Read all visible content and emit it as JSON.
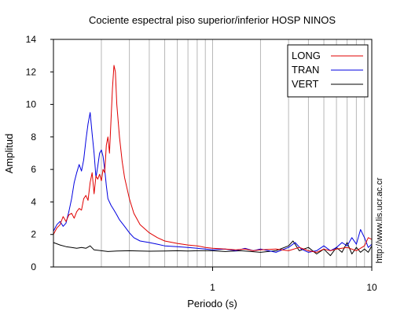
{
  "chart_data": {
    "type": "line",
    "title": "Cociente espectral piso superior/inferior  HOSP NINOS",
    "xlabel": "Periodo (s)",
    "ylabel": "Amplitud",
    "x_scale": "log",
    "xlim": [
      0.1,
      10
    ],
    "ylim": [
      0,
      14
    ],
    "x_ticks": [
      1,
      10
    ],
    "y_ticks": [
      0,
      2,
      4,
      6,
      8,
      10,
      12,
      14
    ],
    "grid": "vertical log minor gridlines",
    "legend_position": "top-right",
    "side_note": "http://www.lis.ucr.ac.cr",
    "series": [
      {
        "name": "LONG",
        "color": "#e00000",
        "points": [
          [
            0.1,
            2.0
          ],
          [
            0.105,
            2.4
          ],
          [
            0.11,
            2.6
          ],
          [
            0.115,
            3.1
          ],
          [
            0.12,
            2.8
          ],
          [
            0.125,
            3.2
          ],
          [
            0.13,
            3.3
          ],
          [
            0.135,
            3.0
          ],
          [
            0.14,
            3.4
          ],
          [
            0.145,
            3.6
          ],
          [
            0.15,
            3.5
          ],
          [
            0.155,
            4.2
          ],
          [
            0.16,
            4.4
          ],
          [
            0.165,
            4.1
          ],
          [
            0.17,
            5.2
          ],
          [
            0.175,
            5.8
          ],
          [
            0.18,
            4.5
          ],
          [
            0.185,
            5.6
          ],
          [
            0.19,
            5.4
          ],
          [
            0.195,
            5.7
          ],
          [
            0.2,
            5.3
          ],
          [
            0.205,
            6.0
          ],
          [
            0.21,
            5.8
          ],
          [
            0.215,
            7.5
          ],
          [
            0.22,
            8.0
          ],
          [
            0.225,
            7.0
          ],
          [
            0.23,
            9.0
          ],
          [
            0.235,
            11.0
          ],
          [
            0.24,
            12.4
          ],
          [
            0.245,
            12.0
          ],
          [
            0.25,
            10.0
          ],
          [
            0.26,
            8.0
          ],
          [
            0.27,
            6.5
          ],
          [
            0.28,
            5.5
          ],
          [
            0.3,
            4.2
          ],
          [
            0.32,
            3.3
          ],
          [
            0.35,
            2.6
          ],
          [
            0.4,
            2.1
          ],
          [
            0.45,
            1.8
          ],
          [
            0.5,
            1.6
          ],
          [
            0.6,
            1.45
          ],
          [
            0.7,
            1.35
          ],
          [
            0.8,
            1.3
          ],
          [
            0.9,
            1.2
          ],
          [
            1.0,
            1.15
          ],
          [
            1.2,
            1.1
          ],
          [
            1.4,
            1.05
          ],
          [
            1.6,
            1.1
          ],
          [
            1.8,
            1.0
          ],
          [
            2.0,
            1.05
          ],
          [
            2.5,
            1.1
          ],
          [
            3.0,
            1.0
          ],
          [
            3.5,
            1.2
          ],
          [
            4.0,
            1.0
          ],
          [
            4.5,
            0.9
          ],
          [
            5.0,
            1.1
          ],
          [
            5.5,
            1.0
          ],
          [
            6.0,
            1.1
          ],
          [
            7.0,
            1.2
          ],
          [
            8.0,
            1.0
          ],
          [
            9.0,
            1.3
          ],
          [
            9.5,
            1.8
          ],
          [
            10.0,
            1.7
          ]
        ]
      },
      {
        "name": "TRAN",
        "color": "#0000e0",
        "points": [
          [
            0.1,
            2.2
          ],
          [
            0.105,
            2.6
          ],
          [
            0.11,
            2.8
          ],
          [
            0.115,
            2.5
          ],
          [
            0.12,
            2.7
          ],
          [
            0.125,
            3.4
          ],
          [
            0.13,
            4.2
          ],
          [
            0.135,
            5.2
          ],
          [
            0.14,
            5.8
          ],
          [
            0.145,
            6.3
          ],
          [
            0.15,
            5.9
          ],
          [
            0.155,
            6.6
          ],
          [
            0.16,
            7.8
          ],
          [
            0.165,
            8.8
          ],
          [
            0.17,
            9.5
          ],
          [
            0.175,
            8.2
          ],
          [
            0.18,
            7.0
          ],
          [
            0.185,
            5.5
          ],
          [
            0.19,
            6.2
          ],
          [
            0.195,
            7.0
          ],
          [
            0.2,
            7.2
          ],
          [
            0.205,
            6.8
          ],
          [
            0.21,
            6.0
          ],
          [
            0.215,
            5.0
          ],
          [
            0.22,
            4.2
          ],
          [
            0.23,
            3.8
          ],
          [
            0.24,
            3.5
          ],
          [
            0.25,
            3.2
          ],
          [
            0.26,
            2.9
          ],
          [
            0.28,
            2.5
          ],
          [
            0.3,
            2.1
          ],
          [
            0.32,
            1.8
          ],
          [
            0.35,
            1.6
          ],
          [
            0.4,
            1.5
          ],
          [
            0.45,
            1.4
          ],
          [
            0.5,
            1.3
          ],
          [
            0.6,
            1.25
          ],
          [
            0.7,
            1.2
          ],
          [
            0.8,
            1.15
          ],
          [
            0.9,
            1.1
          ],
          [
            1.0,
            1.05
          ],
          [
            1.2,
            1.1
          ],
          [
            1.4,
            1.0
          ],
          [
            1.6,
            1.15
          ],
          [
            1.8,
            1.0
          ],
          [
            2.0,
            1.1
          ],
          [
            2.5,
            0.9
          ],
          [
            3.0,
            1.2
          ],
          [
            3.3,
            1.5
          ],
          [
            3.6,
            1.1
          ],
          [
            4.0,
            0.9
          ],
          [
            4.5,
            1.0
          ],
          [
            5.0,
            1.3
          ],
          [
            5.5,
            1.0
          ],
          [
            6.0,
            1.2
          ],
          [
            6.5,
            1.5
          ],
          [
            7.0,
            1.3
          ],
          [
            7.5,
            1.8
          ],
          [
            8.0,
            1.4
          ],
          [
            8.5,
            2.3
          ],
          [
            9.0,
            1.8
          ],
          [
            9.5,
            1.2
          ],
          [
            10.0,
            1.4
          ]
        ]
      },
      {
        "name": "VERT",
        "color": "#000000",
        "points": [
          [
            0.1,
            1.5
          ],
          [
            0.11,
            1.35
          ],
          [
            0.12,
            1.25
          ],
          [
            0.13,
            1.2
          ],
          [
            0.14,
            1.15
          ],
          [
            0.15,
            1.2
          ],
          [
            0.16,
            1.15
          ],
          [
            0.17,
            1.3
          ],
          [
            0.18,
            1.05
          ],
          [
            0.2,
            1.0
          ],
          [
            0.22,
            0.95
          ],
          [
            0.25,
            0.98
          ],
          [
            0.3,
            1.0
          ],
          [
            0.35,
            0.98
          ],
          [
            0.4,
            0.97
          ],
          [
            0.5,
            0.98
          ],
          [
            0.6,
            1.0
          ],
          [
            0.7,
            0.98
          ],
          [
            0.8,
            1.0
          ],
          [
            1.0,
            1.0
          ],
          [
            1.2,
            0.95
          ],
          [
            1.5,
            1.0
          ],
          [
            2.0,
            0.9
          ],
          [
            2.5,
            1.0
          ],
          [
            3.0,
            1.3
          ],
          [
            3.2,
            1.6
          ],
          [
            3.5,
            1.0
          ],
          [
            4.0,
            1.2
          ],
          [
            4.5,
            0.8
          ],
          [
            5.0,
            1.1
          ],
          [
            5.5,
            0.7
          ],
          [
            6.0,
            1.2
          ],
          [
            6.5,
            0.9
          ],
          [
            7.0,
            1.5
          ],
          [
            7.5,
            0.8
          ],
          [
            8.0,
            1.2
          ],
          [
            8.5,
            0.9
          ],
          [
            9.0,
            1.1
          ],
          [
            9.5,
            0.9
          ],
          [
            10.0,
            1.3
          ]
        ]
      }
    ]
  }
}
